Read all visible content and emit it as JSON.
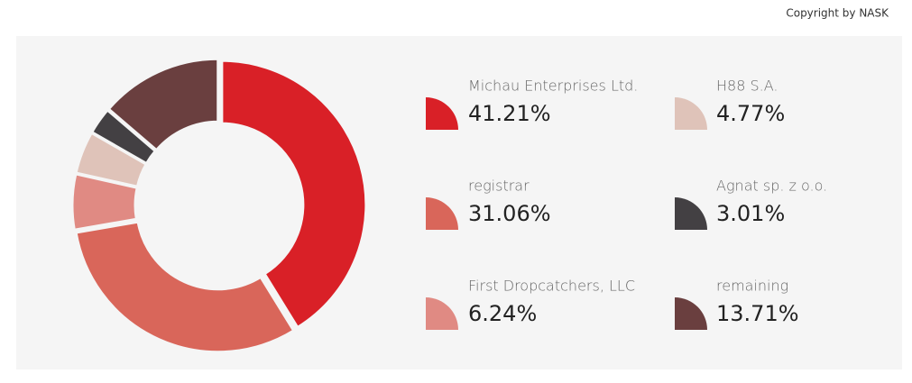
{
  "copyright": "Copyright by NASK",
  "chart_data": {
    "type": "donut",
    "categories": [
      "Michau Enterprises Ltd.",
      "registrar",
      "First Dropcatchers, LLC",
      "H88 S.A.",
      "Agnat sp. z o.o.",
      "remaining"
    ],
    "values": [
      41.21,
      31.06,
      6.24,
      4.77,
      3.01,
      13.71
    ],
    "value_labels": [
      "41.21%",
      "31.06%",
      "6.24%",
      "4.77%",
      "3.01%",
      "13.71%"
    ],
    "colors": [
      "#d92027",
      "#d9665a",
      "#e08a83",
      "#dfc3b9",
      "#434043",
      "#6a3f3f"
    ]
  }
}
